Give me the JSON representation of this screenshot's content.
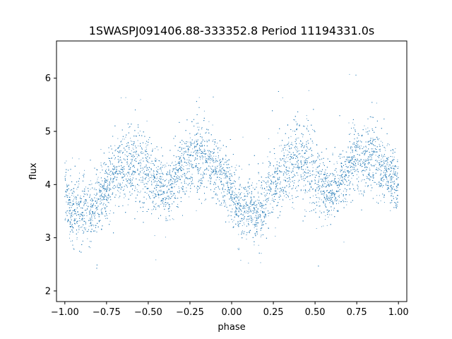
{
  "chart_data": {
    "type": "scatter",
    "title": "1SWASPJ091406.88-333352.8 Period 11194331.0s",
    "xlabel": "phase",
    "ylabel": "flux",
    "xlim": [
      -1.05,
      1.05
    ],
    "ylim": [
      1.8,
      6.7
    ],
    "xticks": [
      -1.0,
      -0.75,
      -0.5,
      -0.25,
      0.0,
      0.25,
      0.5,
      0.75,
      1.0
    ],
    "xtick_labels": [
      "−1.00",
      "−0.75",
      "−0.50",
      "−0.25",
      "0.00",
      "0.25",
      "0.50",
      "0.75",
      "1.00"
    ],
    "yticks": [
      2,
      3,
      4,
      5,
      6
    ],
    "ytick_labels": [
      "2",
      "3",
      "4",
      "5",
      "6"
    ],
    "grid": false,
    "series": [
      {
        "color": "#1f77b4",
        "marker": "point",
        "profile_x": [
          -1.0,
          -0.97,
          -0.94,
          -0.9,
          -0.85,
          -0.8,
          -0.75,
          -0.7,
          -0.65,
          -0.6,
          -0.55,
          -0.5,
          -0.45,
          -0.4,
          -0.35,
          -0.3,
          -0.25,
          -0.2,
          -0.15,
          -0.1,
          -0.05,
          0.0,
          0.03,
          0.06,
          0.1,
          0.15,
          0.2,
          0.25,
          0.3,
          0.35,
          0.4,
          0.45,
          0.5,
          0.55,
          0.6,
          0.65,
          0.7,
          0.75,
          0.8,
          0.85,
          0.9,
          0.95,
          1.0
        ],
        "profile_y": [
          3.95,
          3.6,
          3.45,
          3.55,
          3.45,
          3.65,
          4.0,
          4.2,
          4.35,
          4.45,
          4.4,
          4.2,
          4.0,
          3.85,
          4.05,
          4.3,
          4.5,
          4.55,
          4.45,
          4.3,
          4.15,
          3.95,
          3.6,
          3.45,
          3.55,
          3.45,
          3.65,
          4.0,
          4.2,
          4.35,
          4.45,
          4.4,
          4.2,
          4.0,
          3.85,
          4.05,
          4.3,
          4.5,
          4.55,
          4.45,
          4.3,
          4.15,
          3.95
        ],
        "profile_spread": [
          0.3,
          0.3,
          0.3,
          0.3,
          0.3,
          0.3,
          0.3,
          0.32,
          0.35,
          0.38,
          0.38,
          0.35,
          0.3,
          0.28,
          0.28,
          0.3,
          0.32,
          0.33,
          0.32,
          0.3,
          0.28,
          0.3,
          0.3,
          0.3,
          0.3,
          0.3,
          0.3,
          0.3,
          0.32,
          0.35,
          0.38,
          0.38,
          0.35,
          0.3,
          0.28,
          0.28,
          0.3,
          0.32,
          0.33,
          0.32,
          0.3,
          0.28,
          0.3
        ]
      }
    ]
  }
}
